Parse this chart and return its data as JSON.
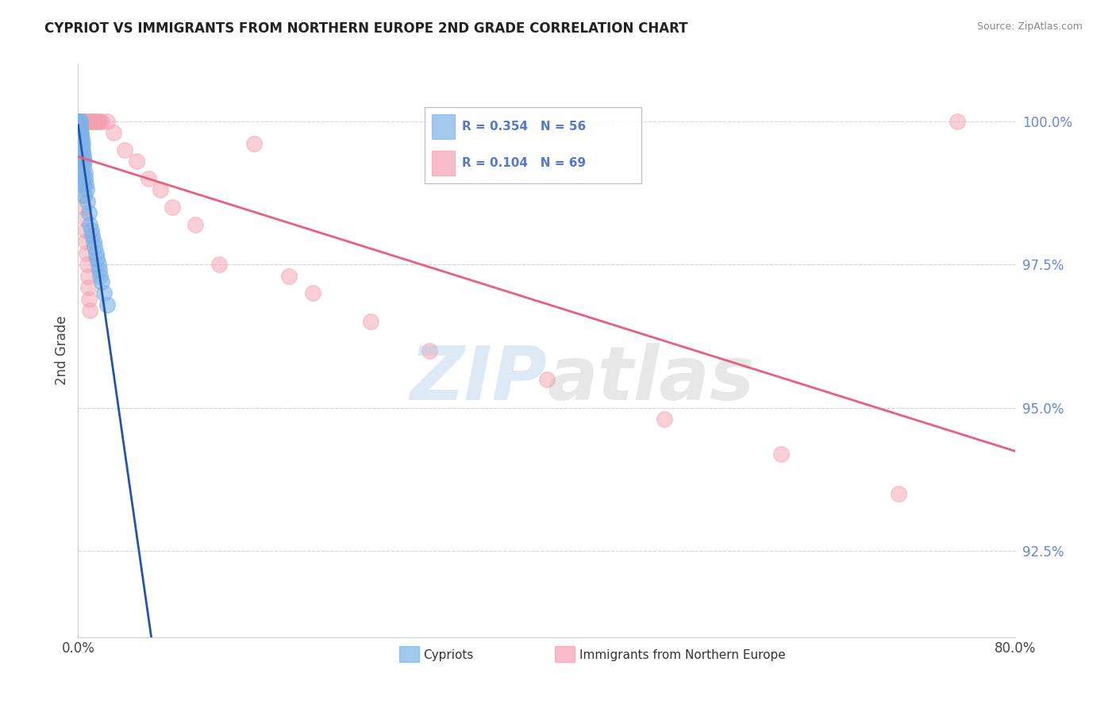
{
  "title": "CYPRIOT VS IMMIGRANTS FROM NORTHERN EUROPE 2ND GRADE CORRELATION CHART",
  "source": "Source: ZipAtlas.com",
  "ylabel": "2nd Grade",
  "yticks": [
    92.5,
    95.0,
    97.5,
    100.0
  ],
  "ytick_labels": [
    "92.5%",
    "95.0%",
    "97.5%",
    "100.0%"
  ],
  "xlim": [
    0.0,
    80.0
  ],
  "ylim": [
    91.0,
    101.0
  ],
  "blue_label": "Cypriots",
  "pink_label": "Immigrants from Northern Europe",
  "blue_R": 0.354,
  "blue_N": 56,
  "pink_R": 0.104,
  "pink_N": 69,
  "blue_color": "#7EB3E8",
  "pink_color": "#F4A0B0",
  "blue_line_color": "#2255AA",
  "pink_line_color": "#E86080",
  "watermark_zip": "ZIP",
  "watermark_atlas": "atlas",
  "blue_x": [
    0.05,
    0.05,
    0.05,
    0.05,
    0.1,
    0.1,
    0.1,
    0.1,
    0.1,
    0.1,
    0.1,
    0.15,
    0.15,
    0.15,
    0.15,
    0.15,
    0.2,
    0.2,
    0.2,
    0.2,
    0.25,
    0.25,
    0.25,
    0.3,
    0.3,
    0.35,
    0.35,
    0.4,
    0.4,
    0.45,
    0.45,
    0.5,
    0.55,
    0.6,
    0.65,
    0.7,
    0.8,
    0.9,
    1.0,
    1.1,
    1.2,
    1.3,
    1.4,
    1.5,
    1.6,
    1.7,
    1.8,
    1.9,
    2.0,
    2.2,
    2.5,
    0.12,
    0.22,
    0.32,
    0.42,
    0.52
  ],
  "blue_y": [
    100.0,
    100.0,
    99.9,
    99.8,
    100.0,
    100.0,
    100.0,
    99.9,
    99.8,
    99.7,
    99.6,
    100.0,
    99.9,
    99.8,
    99.7,
    99.6,
    100.0,
    99.9,
    99.8,
    99.7,
    99.8,
    99.7,
    99.6,
    99.7,
    99.5,
    99.6,
    99.4,
    99.5,
    99.3,
    99.4,
    99.2,
    99.3,
    99.1,
    99.0,
    98.9,
    98.8,
    98.6,
    98.4,
    98.2,
    98.1,
    98.0,
    97.9,
    97.8,
    97.7,
    97.6,
    97.5,
    97.4,
    97.3,
    97.2,
    97.0,
    96.8,
    99.5,
    99.3,
    99.1,
    98.9,
    98.7
  ],
  "pink_x": [
    0.1,
    0.1,
    0.1,
    0.15,
    0.15,
    0.2,
    0.2,
    0.25,
    0.25,
    0.3,
    0.35,
    0.4,
    0.45,
    0.5,
    0.55,
    0.6,
    0.65,
    0.7,
    0.75,
    0.8,
    0.9,
    1.0,
    1.1,
    1.2,
    1.3,
    1.4,
    1.5,
    1.6,
    1.7,
    1.8,
    2.0,
    2.5,
    3.0,
    4.0,
    5.0,
    6.0,
    7.0,
    8.0,
    10.0,
    12.0,
    15.0,
    18.0,
    20.0,
    25.0,
    30.0,
    40.0,
    50.0,
    60.0,
    70.0,
    75.0,
    0.08,
    0.12,
    0.18,
    0.22,
    0.28,
    0.32,
    0.38,
    0.42,
    0.48,
    0.52,
    0.58,
    0.62,
    0.68,
    0.72,
    0.78,
    0.82,
    0.88,
    0.92,
    0.98
  ],
  "pink_y": [
    100.0,
    100.0,
    100.0,
    100.0,
    100.0,
    100.0,
    100.0,
    100.0,
    100.0,
    100.0,
    100.0,
    100.0,
    100.0,
    100.0,
    100.0,
    100.0,
    100.0,
    100.0,
    100.0,
    100.0,
    100.0,
    100.0,
    100.0,
    100.0,
    100.0,
    100.0,
    100.0,
    100.0,
    100.0,
    100.0,
    100.0,
    100.0,
    99.8,
    99.5,
    99.3,
    99.0,
    98.8,
    98.5,
    98.2,
    97.5,
    99.6,
    97.3,
    97.0,
    96.5,
    96.0,
    95.5,
    94.8,
    94.2,
    93.5,
    100.0,
    99.9,
    99.8,
    99.7,
    99.6,
    99.5,
    99.3,
    99.1,
    98.9,
    98.7,
    98.5,
    98.3,
    98.1,
    97.9,
    97.7,
    97.5,
    97.3,
    97.1,
    96.9,
    96.7
  ]
}
